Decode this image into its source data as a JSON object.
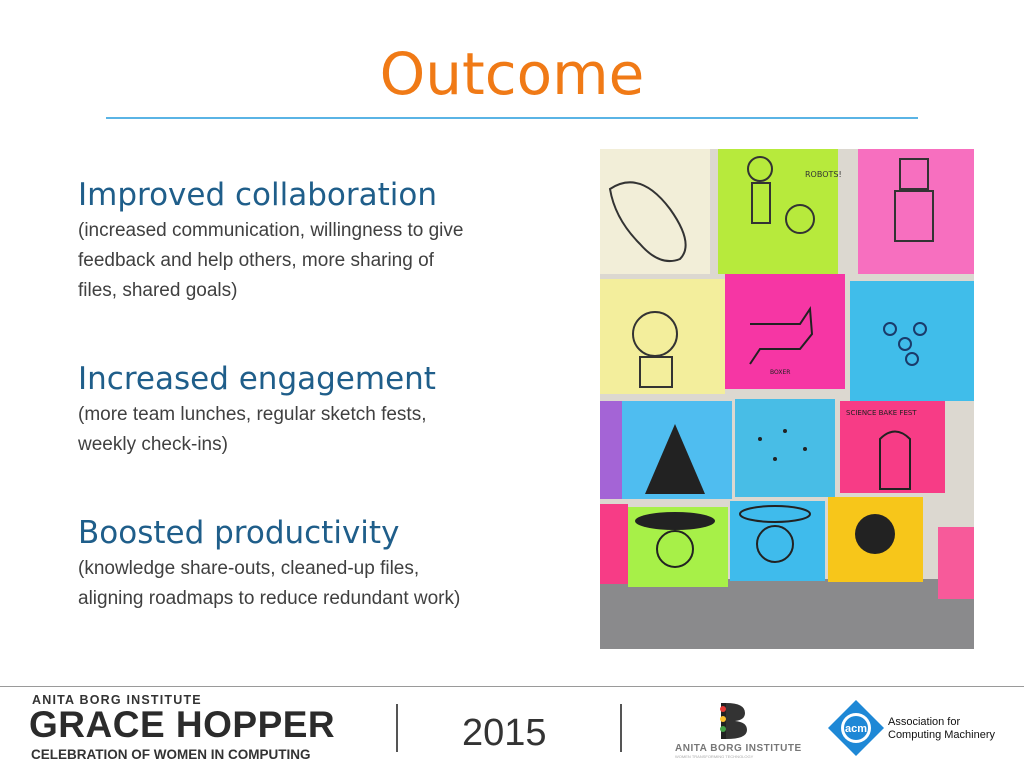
{
  "slide": {
    "title": "Outcome",
    "bullets": [
      {
        "heading": "Improved collaboration",
        "detail_lines": [
          "(increased communication, willingness to give",
          "feedback and help others, more sharing of",
          "files, shared goals)"
        ]
      },
      {
        "heading": "Increased engagement",
        "detail_lines": [
          "(more team lunches, regular sketch fests,",
          "weekly check-ins)"
        ]
      },
      {
        "heading": "Boosted productivity",
        "detail_lines": [
          "(knowledge share-outs, cleaned-up files,",
          "aligning roadmaps to reduce redundant work)"
        ]
      }
    ],
    "photo": {
      "note_labels": [
        "ROBOTS!",
        "BOXER",
        "SCIENCE BAKE FEST"
      ]
    }
  },
  "footer": {
    "org_small": "ANITA BORG INSTITUTE",
    "event_name": "GRACE HOPPER",
    "event_subtitle": "CELEBRATION OF WOMEN IN COMPUTING",
    "year": "2015",
    "abi_logo_text": "ANITA BORG INSTITUTE",
    "abi_logo_tagline": "WOMEN TRANSFORMING TECHNOLOGY",
    "acm_logo_text": "acm",
    "acm_name_lines": [
      "Association for",
      "Computing Machinery"
    ]
  },
  "colors": {
    "title": "#f07a16",
    "heading": "#1f5e8a",
    "rule": "#5ab4e5"
  }
}
